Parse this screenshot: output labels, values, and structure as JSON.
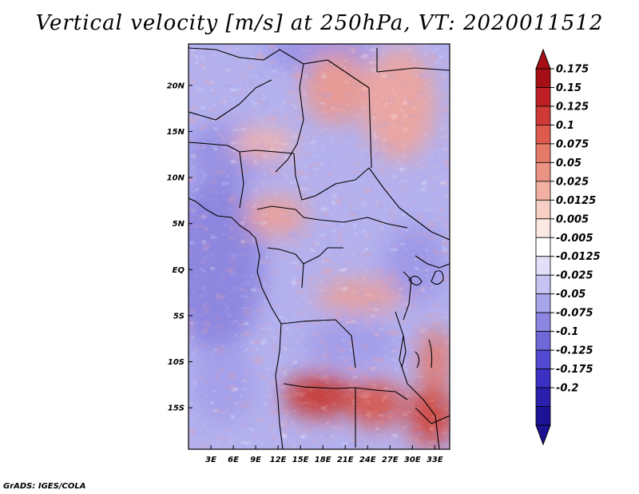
{
  "title": "Vertical velocity [m/s] at 250hPa, VT: 2020011512",
  "credit": "GrADS: IGES/COLA",
  "lat_ticks": [
    {
      "value": 20,
      "label": "20N"
    },
    {
      "value": 15,
      "label": "15N"
    },
    {
      "value": 10,
      "label": "10N"
    },
    {
      "value": 5,
      "label": "5N"
    },
    {
      "value": 0,
      "label": "EQ"
    },
    {
      "value": -5,
      "label": "5S"
    },
    {
      "value": -10,
      "label": "10S"
    },
    {
      "value": -15,
      "label": "15S"
    }
  ],
  "lon_ticks": [
    {
      "value": 3,
      "label": "3E"
    },
    {
      "value": 6,
      "label": "6E"
    },
    {
      "value": 9,
      "label": "9E"
    },
    {
      "value": 12,
      "label": "12E"
    },
    {
      "value": 15,
      "label": "15E"
    },
    {
      "value": 18,
      "label": "18E"
    },
    {
      "value": 21,
      "label": "21E"
    },
    {
      "value": 24,
      "label": "24E"
    },
    {
      "value": 27,
      "label": "27E"
    },
    {
      "value": 30,
      "label": "30E"
    },
    {
      "value": 33,
      "label": "33E"
    }
  ],
  "colorbar": {
    "labels": [
      "0.175",
      "0.15",
      "0.125",
      "0.1",
      "0.075",
      "0.05",
      "0.025",
      "0.0125",
      "0.005",
      "-0.005",
      "-0.0125",
      "-0.025",
      "-0.05",
      "-0.075",
      "-0.1",
      "-0.125",
      "-0.175",
      "-0.2"
    ],
    "colors": [
      "#a50f15",
      "#be1e24",
      "#d03a36",
      "#de5a4e",
      "#e67a68",
      "#ec9484",
      "#f2b0a2",
      "#f7cfc4",
      "#fbe8e2",
      "#ffffff",
      "#e2e0f9",
      "#c6c3f2",
      "#a9a5ea",
      "#8c86e2",
      "#6f68d9",
      "#524ad0",
      "#3a30c3",
      "#2a1fad",
      "#1c1296"
    ],
    "top_color": "#a50f15",
    "bottom_color": "#1c1296"
  },
  "chart_data": {
    "type": "heatmap",
    "variable": "Vertical velocity [m/s] at 250hPa",
    "valid_time": "2020011512",
    "lon_range": [
      0,
      35
    ],
    "lat_range": [
      -19.5,
      24.5
    ],
    "color_levels": [
      -0.2,
      -0.175,
      -0.125,
      -0.1,
      -0.075,
      -0.05,
      -0.025,
      -0.0125,
      -0.005,
      0.005,
      0.0125,
      0.025,
      0.05,
      0.075,
      0.1,
      0.125,
      0.15,
      0.175
    ],
    "features": [
      {
        "region": "southern Angola / Zambia",
        "sign": "positive",
        "magnitude": "strong, up to 0.15"
      },
      {
        "region": "eastern Atlantic off Gulf of Guinea",
        "sign": "negative",
        "magnitude": "weak to moderate"
      },
      {
        "region": "Sahara / Sahel",
        "sign": "mixed",
        "magnitude": "weak streaks"
      }
    ]
  }
}
